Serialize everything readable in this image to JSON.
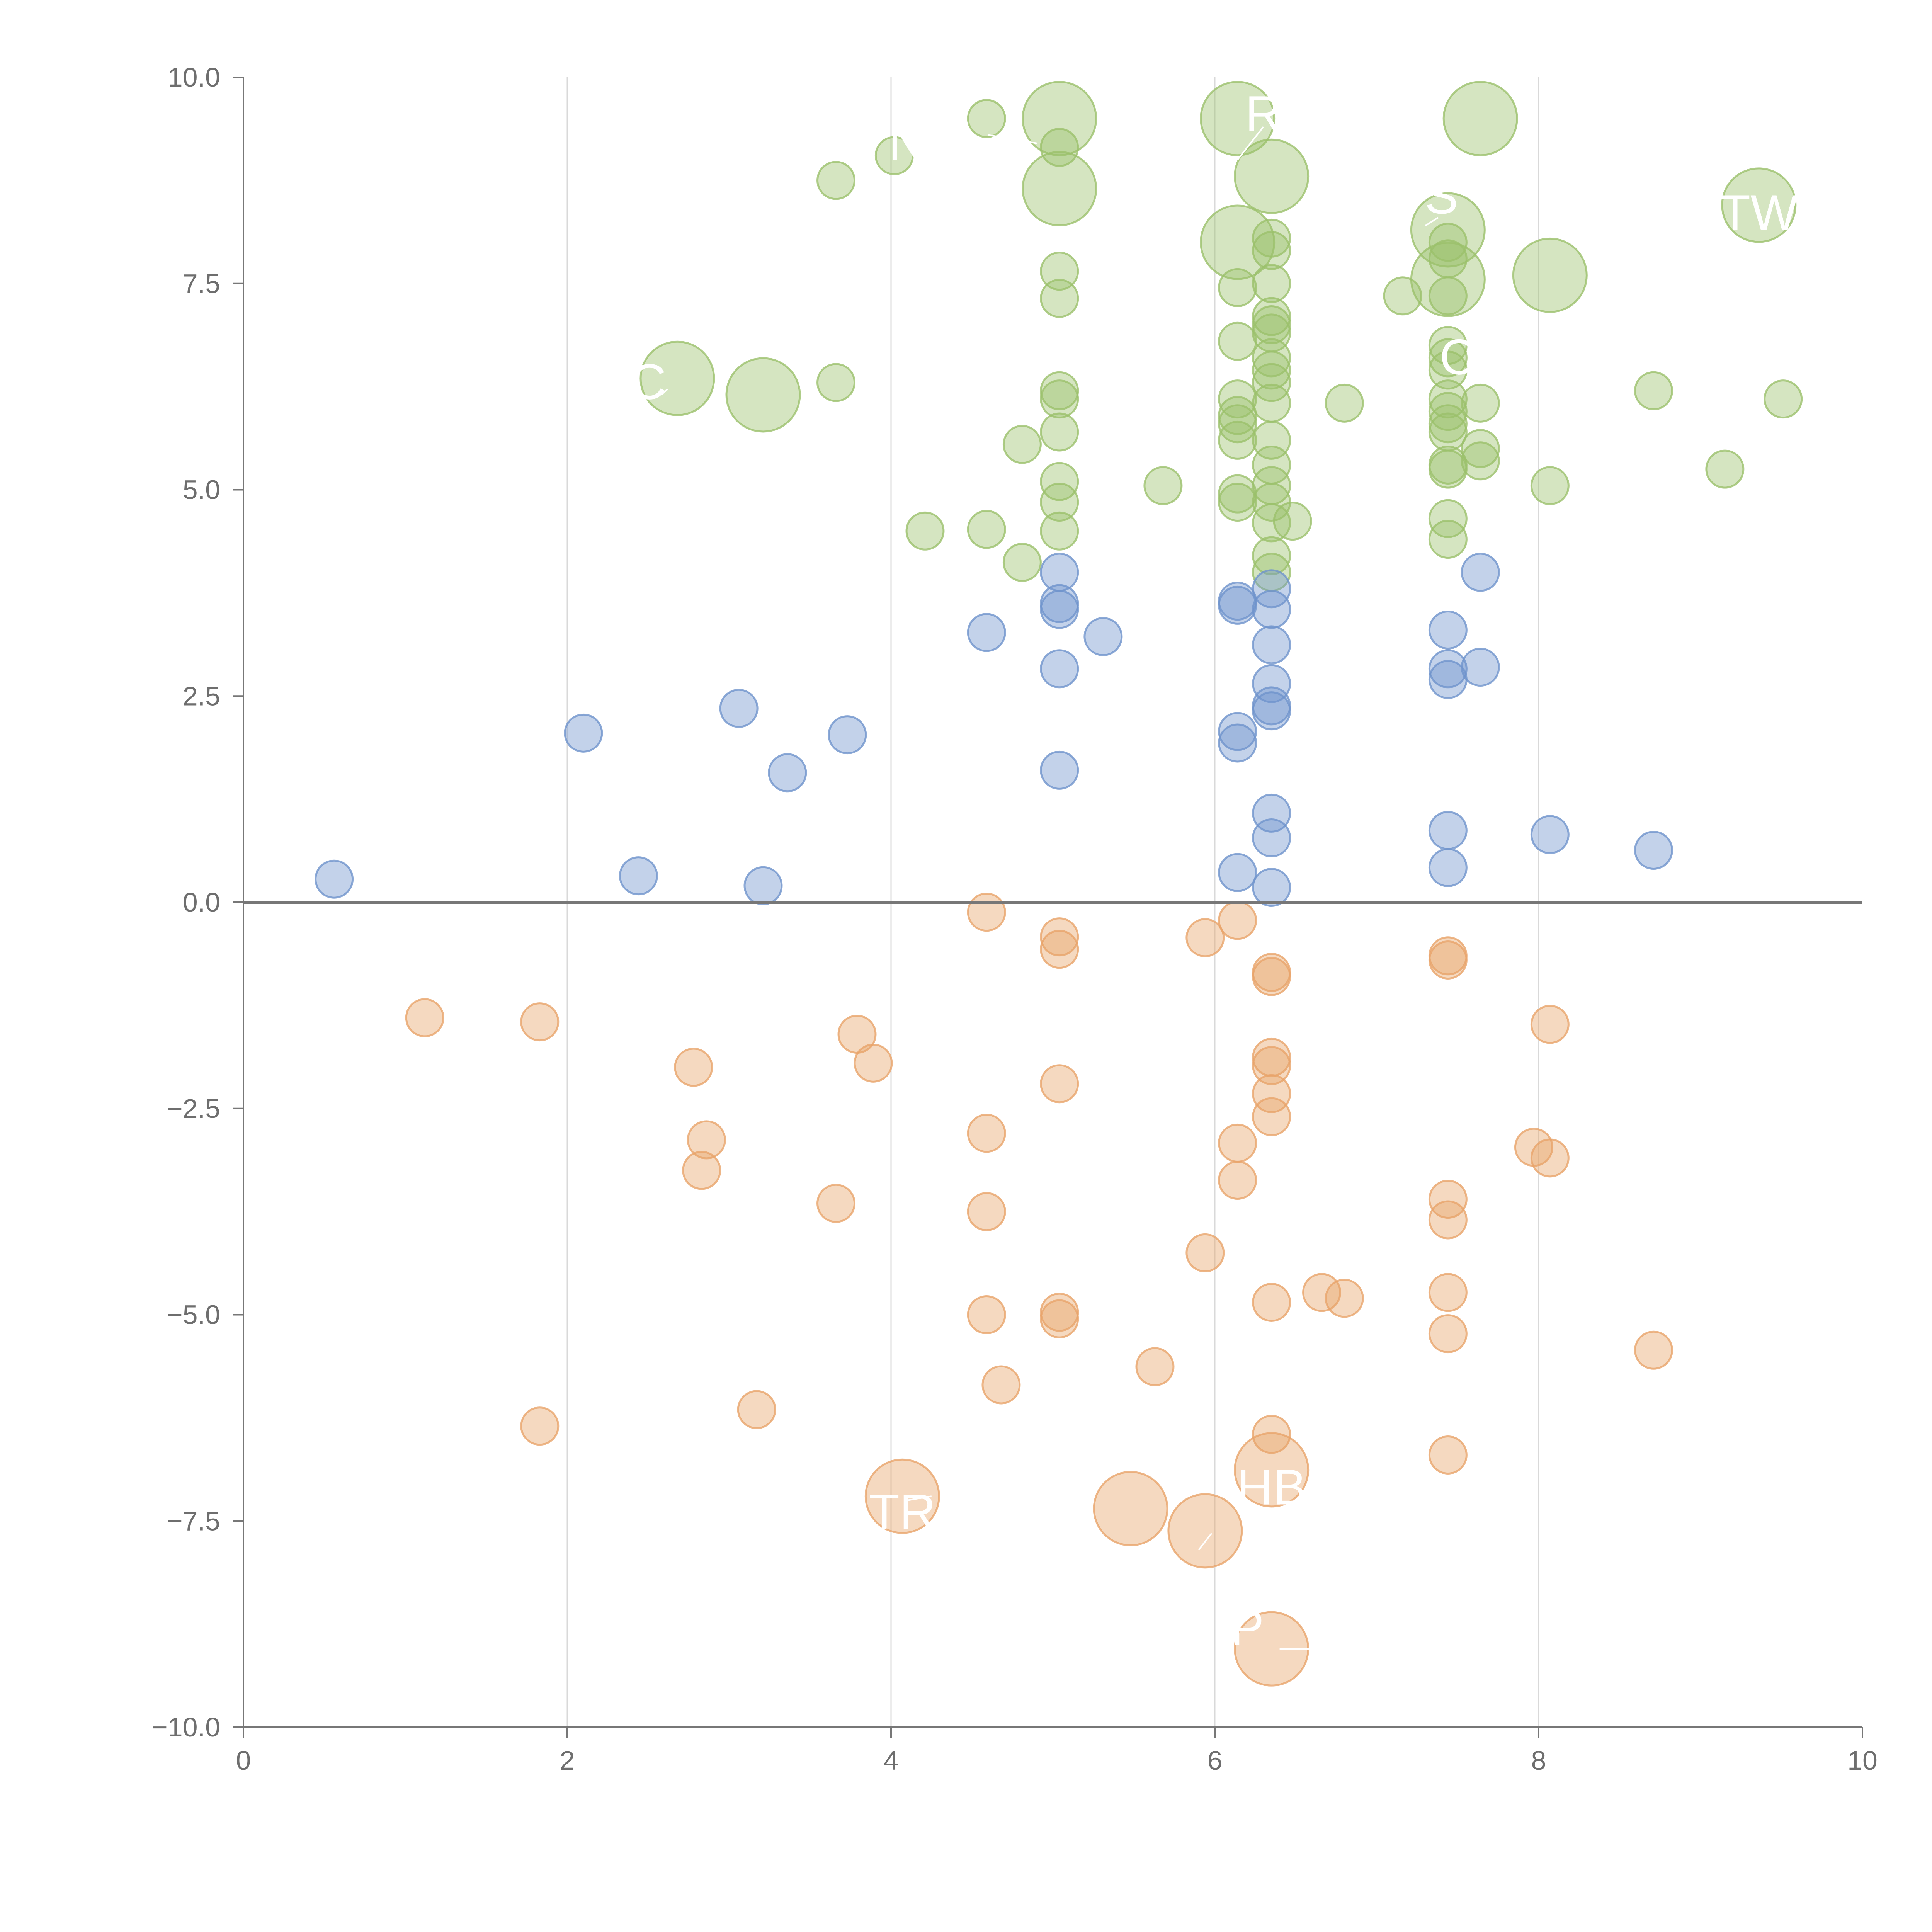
{
  "chart_data": {
    "type": "scatter",
    "title": "",
    "xlabel": "",
    "ylabel": "",
    "xlim": [
      0,
      10
    ],
    "ylim": [
      -10,
      10
    ],
    "x_ticks": [
      "0",
      "2",
      "4",
      "6",
      "8",
      "10"
    ],
    "y_ticks": [
      "10.0",
      "7.5",
      "5.0",
      "2.5",
      "0.0",
      "−2.5",
      "−5.0",
      "−7.5",
      "−10.0"
    ],
    "x_tick_values": [
      0,
      2,
      4,
      6,
      8,
      10
    ],
    "y_tick_values": [
      10,
      7.5,
      5,
      2.5,
      0,
      -2.5,
      -5,
      -7.5,
      -10
    ],
    "x_gridlines": [
      2,
      4,
      6,
      8
    ],
    "reference_line_y": 0,
    "colors": {
      "high": "#9bc16c",
      "mid": "#6f94cc",
      "low": "#e8a46a",
      "axis": "#777777",
      "grid": "#d9d9d9"
    },
    "series": [
      {
        "name": "high",
        "color": "#9bc16c",
        "points": [
          [
            3.66,
            8.75,
            1
          ],
          [
            4.59,
            9.5,
            1
          ],
          [
            4.02,
            9.05,
            1
          ],
          [
            5.04,
            9.5,
            2
          ],
          [
            5.04,
            9.15,
            1
          ],
          [
            5.04,
            8.65,
            2
          ],
          [
            6.14,
            9.5,
            2
          ],
          [
            6.35,
            8.8,
            2
          ],
          [
            6.14,
            8.0,
            2
          ],
          [
            7.64,
            9.5,
            2
          ],
          [
            7.44,
            8.15,
            2
          ],
          [
            7.44,
            7.55,
            2
          ],
          [
            8.07,
            7.6,
            2
          ],
          [
            9.36,
            8.45,
            2
          ],
          [
            2.68,
            6.35,
            2
          ],
          [
            3.21,
            6.15,
            2
          ],
          [
            3.66,
            6.3,
            1
          ],
          [
            5.04,
            7.65,
            1
          ],
          [
            5.04,
            7.32,
            1
          ],
          [
            5.04,
            6.2,
            1
          ],
          [
            5.04,
            6.1,
            1
          ],
          [
            5.04,
            5.7,
            1
          ],
          [
            4.81,
            5.55,
            1
          ],
          [
            5.04,
            5.1,
            1
          ],
          [
            5.04,
            4.85,
            1
          ],
          [
            5.04,
            4.5,
            1
          ],
          [
            4.59,
            4.52,
            1
          ],
          [
            4.21,
            4.5,
            1
          ],
          [
            4.81,
            4.12,
            1
          ],
          [
            5.68,
            5.05,
            1
          ],
          [
            6.14,
            7.45,
            1
          ],
          [
            6.14,
            6.8,
            1
          ],
          [
            6.14,
            6.1,
            1
          ],
          [
            6.14,
            5.9,
            1
          ],
          [
            6.14,
            5.8,
            1
          ],
          [
            6.14,
            5.6,
            1
          ],
          [
            6.14,
            4.95,
            1
          ],
          [
            6.14,
            4.85,
            1
          ],
          [
            6.35,
            8.05,
            1
          ],
          [
            6.35,
            7.9,
            1
          ],
          [
            6.35,
            7.5,
            1
          ],
          [
            6.35,
            7.1,
            1
          ],
          [
            6.35,
            7.0,
            1
          ],
          [
            6.35,
            6.9,
            1
          ],
          [
            6.35,
            6.6,
            1
          ],
          [
            6.35,
            6.45,
            1
          ],
          [
            6.35,
            6.3,
            1
          ],
          [
            6.35,
            6.05,
            1
          ],
          [
            6.35,
            5.6,
            1
          ],
          [
            6.35,
            5.3,
            1
          ],
          [
            6.35,
            5.05,
            1
          ],
          [
            6.35,
            4.85,
            1
          ],
          [
            6.35,
            4.6,
            1
          ],
          [
            6.35,
            4.2,
            1
          ],
          [
            6.35,
            4.0,
            1
          ],
          [
            6.48,
            4.62,
            1
          ],
          [
            6.8,
            6.05,
            1
          ],
          [
            7.16,
            7.35,
            1
          ],
          [
            7.44,
            8.0,
            1
          ],
          [
            7.44,
            7.8,
            1
          ],
          [
            7.44,
            7.35,
            1
          ],
          [
            7.44,
            6.75,
            1
          ],
          [
            7.44,
            6.6,
            1
          ],
          [
            7.44,
            6.45,
            1
          ],
          [
            7.44,
            6.1,
            1
          ],
          [
            7.44,
            5.95,
            1
          ],
          [
            7.44,
            5.8,
            1
          ],
          [
            7.44,
            5.7,
            1
          ],
          [
            7.44,
            5.3,
            1
          ],
          [
            7.44,
            5.25,
            1
          ],
          [
            7.44,
            4.65,
            1
          ],
          [
            7.44,
            4.4,
            1
          ],
          [
            7.64,
            6.05,
            1
          ],
          [
            7.64,
            5.5,
            1
          ],
          [
            7.64,
            5.35,
            1
          ],
          [
            8.07,
            5.05,
            1
          ],
          [
            8.71,
            6.2,
            1
          ],
          [
            9.15,
            5.25,
            1
          ],
          [
            9.51,
            6.1,
            1
          ]
        ]
      },
      {
        "name": "mid",
        "color": "#6f94cc",
        "points": [
          [
            0.56,
            0.28,
            1
          ],
          [
            2.1,
            2.05,
            1
          ],
          [
            2.44,
            0.32,
            1
          ],
          [
            3.06,
            2.35,
            1
          ],
          [
            3.21,
            0.2,
            1
          ],
          [
            3.36,
            1.57,
            1
          ],
          [
            3.73,
            2.03,
            1
          ],
          [
            4.59,
            3.27,
            1
          ],
          [
            5.04,
            4.0,
            1
          ],
          [
            5.04,
            3.62,
            1
          ],
          [
            5.04,
            3.55,
            1
          ],
          [
            5.04,
            2.83,
            1
          ],
          [
            5.04,
            1.6,
            1
          ],
          [
            5.31,
            3.22,
            1
          ],
          [
            6.14,
            3.65,
            1
          ],
          [
            6.14,
            3.6,
            1
          ],
          [
            6.14,
            2.07,
            1
          ],
          [
            6.14,
            1.93,
            1
          ],
          [
            6.14,
            0.36,
            1
          ],
          [
            6.35,
            3.8,
            1
          ],
          [
            6.35,
            3.55,
            1
          ],
          [
            6.35,
            3.12,
            1
          ],
          [
            6.35,
            2.65,
            1
          ],
          [
            6.35,
            2.38,
            1
          ],
          [
            6.35,
            2.32,
            1
          ],
          [
            6.35,
            1.08,
            1
          ],
          [
            6.35,
            0.78,
            1
          ],
          [
            6.35,
            0.18,
            1
          ],
          [
            7.44,
            3.3,
            1
          ],
          [
            7.44,
            2.83,
            1
          ],
          [
            7.44,
            2.7,
            1
          ],
          [
            7.44,
            0.87,
            1
          ],
          [
            7.44,
            0.42,
            1
          ],
          [
            7.64,
            4.0,
            1
          ],
          [
            7.64,
            2.85,
            1
          ],
          [
            8.07,
            0.82,
            1
          ],
          [
            8.71,
            0.63,
            1
          ]
        ]
      },
      {
        "name": "low",
        "color": "#e8a46a",
        "points": [
          [
            1.12,
            -1.4,
            1
          ],
          [
            1.83,
            -1.45,
            1
          ],
          [
            2.78,
            -2.0,
            1
          ],
          [
            2.86,
            -2.88,
            1
          ],
          [
            2.83,
            -3.25,
            1
          ],
          [
            3.66,
            -3.65,
            1
          ],
          [
            3.79,
            -1.6,
            1
          ],
          [
            3.89,
            -1.95,
            1
          ],
          [
            1.83,
            -6.35,
            1
          ],
          [
            3.17,
            -6.15,
            1
          ],
          [
            4.59,
            -0.12,
            1
          ],
          [
            4.59,
            -2.8,
            1
          ],
          [
            4.59,
            -3.75,
            1
          ],
          [
            4.59,
            -5.0,
            1
          ],
          [
            4.68,
            -5.85,
            1
          ],
          [
            5.04,
            -0.42,
            1
          ],
          [
            5.04,
            -0.57,
            1
          ],
          [
            5.04,
            -2.2,
            1
          ],
          [
            5.04,
            -4.97,
            1
          ],
          [
            5.04,
            -5.05,
            1
          ],
          [
            5.63,
            -5.63,
            1
          ],
          [
            5.94,
            -0.43,
            1
          ],
          [
            6.14,
            -0.22,
            1
          ],
          [
            5.94,
            -4.25,
            1
          ],
          [
            6.14,
            -2.92,
            1
          ],
          [
            6.14,
            -3.37,
            1
          ],
          [
            6.35,
            -0.85,
            1
          ],
          [
            6.35,
            -0.9,
            1
          ],
          [
            6.35,
            -1.88,
            1
          ],
          [
            6.35,
            -1.98,
            1
          ],
          [
            6.35,
            -2.32,
            1
          ],
          [
            6.35,
            -2.6,
            1
          ],
          [
            6.35,
            -4.85,
            1
          ],
          [
            6.35,
            -6.45,
            1
          ],
          [
            6.66,
            -4.73,
            1
          ],
          [
            6.8,
            -4.8,
            1
          ],
          [
            7.44,
            -0.65,
            1
          ],
          [
            7.44,
            -0.7,
            1
          ],
          [
            7.44,
            -3.6,
            1
          ],
          [
            7.44,
            -3.85,
            1
          ],
          [
            7.44,
            -4.73,
            1
          ],
          [
            7.44,
            -5.23,
            1
          ],
          [
            7.44,
            -6.7,
            1
          ],
          [
            7.97,
            -2.97,
            1
          ],
          [
            8.07,
            -1.48,
            1
          ],
          [
            8.07,
            -3.1,
            1
          ],
          [
            8.71,
            -5.43,
            1
          ],
          [
            4.07,
            -7.2,
            2
          ],
          [
            5.48,
            -7.35,
            2
          ],
          [
            5.94,
            -7.62,
            2
          ],
          [
            6.35,
            -6.88,
            2
          ],
          [
            6.35,
            -9.05,
            2
          ]
        ]
      }
    ],
    "annotations": [
      {
        "text": "C",
        "x": 2.5,
        "y": 6.1,
        "lx1": 2.58,
        "ly1": 6.15,
        "lx2": 2.62,
        "ly2": 6.22
      },
      {
        "text": "NB",
        "x": 4.2,
        "y": 9.0,
        "lx1": 4.6,
        "ly1": 9.3,
        "lx2": 4.9,
        "ly2": 9.2
      },
      {
        "text": "R",
        "x": 6.3,
        "y": 9.35,
        "lx1": 6.14,
        "ly1": 9.0,
        "lx2": 6.3,
        "ly2": 9.4
      },
      {
        "text": "S",
        "x": 7.4,
        "y": 8.35,
        "lx1": 7.3,
        "ly1": 8.2,
        "lx2": 7.38,
        "ly2": 8.3
      },
      {
        "text": "TW",
        "x": 9.36,
        "y": 8.15,
        "lx1": 0,
        "ly1": 0,
        "lx2": 0,
        "ly2": 0
      },
      {
        "text": "C",
        "x": 7.5,
        "y": 6.4,
        "lx1": 0,
        "ly1": 0,
        "lx2": 0,
        "ly2": 0
      },
      {
        "text": "TR",
        "x": 4.07,
        "y": -7.6,
        "lx1": 4.25,
        "ly1": -7.2,
        "lx2": 4.1,
        "ly2": -7.25
      },
      {
        "text": "HB",
        "x": 6.35,
        "y": -7.3,
        "lx1": 5.9,
        "ly1": -7.85,
        "lx2": 5.98,
        "ly2": -7.65
      },
      {
        "text": "P",
        "x": 6.2,
        "y": -9.0,
        "lx1": 6.4,
        "ly1": -9.05,
        "lx2": 6.62,
        "ly2": -9.05
      }
    ]
  }
}
